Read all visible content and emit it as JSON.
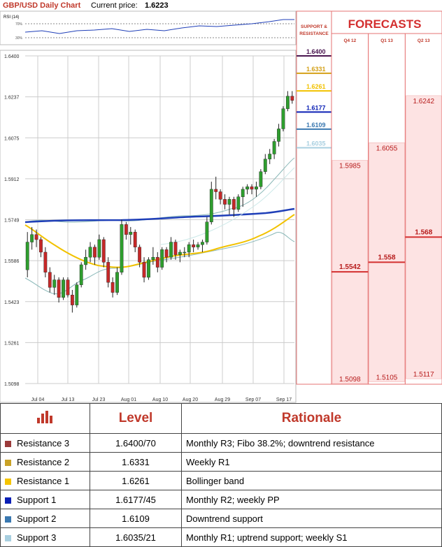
{
  "header": {
    "title": "GBP/USD Daily Chart",
    "price_label": "Current price:",
    "price_value": "1.6223"
  },
  "rsi": {
    "label": "RSI (14)",
    "levels": [
      "70%",
      "30%"
    ]
  },
  "chart_data": {
    "type": "candlestick",
    "title": "GBP/USD Daily Chart",
    "y_ticks": [
      "1.6400",
      "1.6237",
      "1.6075",
      "1.5912",
      "1.5749",
      "1.5586",
      "1.5423",
      "1.5261",
      "1.5098"
    ],
    "x_ticks": [
      "Jul 04",
      "Jul 13",
      "Jul 23",
      "Aug 01",
      "Aug 10",
      "Aug 20",
      "Aug 29",
      "Sep 07",
      "Sep 17"
    ],
    "ylim": [
      1.5098,
      1.64
    ],
    "candles": [
      [
        1.555,
        1.57,
        1.552,
        1.566
      ],
      [
        1.566,
        1.572,
        1.563,
        1.569
      ],
      [
        1.569,
        1.571,
        1.564,
        1.567
      ],
      [
        1.567,
        1.568,
        1.56,
        1.562
      ],
      [
        1.562,
        1.564,
        1.552,
        1.554
      ],
      [
        1.554,
        1.556,
        1.546,
        1.548
      ],
      [
        1.548,
        1.553,
        1.545,
        1.551
      ],
      [
        1.551,
        1.552,
        1.542,
        1.544
      ],
      [
        1.544,
        1.552,
        1.543,
        1.551
      ],
      [
        1.551,
        1.552,
        1.544,
        1.545
      ],
      [
        1.545,
        1.547,
        1.538,
        1.541
      ],
      [
        1.541,
        1.55,
        1.54,
        1.549
      ],
      [
        1.549,
        1.558,
        1.548,
        1.557
      ],
      [
        1.557,
        1.563,
        1.555,
        1.56
      ],
      [
        1.56,
        1.566,
        1.558,
        1.564
      ],
      [
        1.564,
        1.565,
        1.557,
        1.56
      ],
      [
        1.56,
        1.569,
        1.559,
        1.567
      ],
      [
        1.567,
        1.568,
        1.556,
        1.558
      ],
      [
        1.558,
        1.56,
        1.548,
        1.55
      ],
      [
        1.55,
        1.552,
        1.544,
        1.546
      ],
      [
        1.546,
        1.556,
        1.545,
        1.554
      ],
      [
        1.554,
        1.575,
        1.553,
        1.573
      ],
      [
        1.573,
        1.574,
        1.567,
        1.569
      ],
      [
        1.569,
        1.572,
        1.565,
        1.57
      ],
      [
        1.57,
        1.571,
        1.562,
        1.564
      ],
      [
        1.564,
        1.565,
        1.556,
        1.558
      ],
      [
        1.558,
        1.56,
        1.55,
        1.552
      ],
      [
        1.552,
        1.56,
        1.551,
        1.559
      ],
      [
        1.559,
        1.564,
        1.557,
        1.56
      ],
      [
        1.56,
        1.562,
        1.554,
        1.556
      ],
      [
        1.556,
        1.564,
        1.555,
        1.563
      ],
      [
        1.563,
        1.564,
        1.558,
        1.56
      ],
      [
        1.56,
        1.568,
        1.559,
        1.566
      ],
      [
        1.566,
        1.567,
        1.559,
        1.561
      ],
      [
        1.561,
        1.563,
        1.558,
        1.562
      ],
      [
        1.562,
        1.564,
        1.56,
        1.562
      ],
      [
        1.562,
        1.566,
        1.56,
        1.565
      ],
      [
        1.565,
        1.567,
        1.562,
        1.564
      ],
      [
        1.564,
        1.566,
        1.563,
        1.565
      ],
      [
        1.565,
        1.567,
        1.562,
        1.566
      ],
      [
        1.566,
        1.576,
        1.565,
        1.574
      ],
      [
        1.574,
        1.59,
        1.573,
        1.587
      ],
      [
        1.587,
        1.592,
        1.583,
        1.586
      ],
      [
        1.586,
        1.587,
        1.581,
        1.583
      ],
      [
        1.583,
        1.585,
        1.579,
        1.581
      ],
      [
        1.581,
        1.584,
        1.577,
        1.583
      ],
      [
        1.583,
        1.584,
        1.576,
        1.579
      ],
      [
        1.579,
        1.585,
        1.578,
        1.584
      ],
      [
        1.584,
        1.588,
        1.58,
        1.587
      ],
      [
        1.587,
        1.589,
        1.585,
        1.588
      ],
      [
        1.588,
        1.589,
        1.585,
        1.587
      ],
      [
        1.587,
        1.59,
        1.584,
        1.588
      ],
      [
        1.588,
        1.595,
        1.587,
        1.594
      ],
      [
        1.594,
        1.601,
        1.593,
        1.599
      ],
      [
        1.599,
        1.603,
        1.597,
        1.601
      ],
      [
        1.601,
        1.607,
        1.599,
        1.606
      ],
      [
        1.606,
        1.613,
        1.604,
        1.611
      ],
      [
        1.611,
        1.62,
        1.61,
        1.619
      ],
      [
        1.619,
        1.626,
        1.618,
        1.624
      ],
      [
        1.624,
        1.626,
        1.621,
        1.6223
      ]
    ]
  },
  "sr_levels": [
    {
      "label": "1.6400",
      "value": 1.64,
      "color": "#4a1650"
    },
    {
      "label": "1.6331",
      "value": 1.6331,
      "color": "#d4a017"
    },
    {
      "label": "1.6261",
      "value": 1.6261,
      "color": "#f2c200"
    },
    {
      "label": "1.6177",
      "value": 1.6177,
      "color": "#0a1fb5"
    },
    {
      "label": "1.6109",
      "value": 1.6109,
      "color": "#3a78b0"
    },
    {
      "label": "1.6035",
      "value": 1.6035,
      "color": "#a8cfe0"
    }
  ],
  "forecasts": {
    "title": "FORECASTS",
    "sr_header": [
      "SUPPORT &",
      "RESISTANCE"
    ],
    "columns": [
      {
        "name": "Q4 12",
        "low": "1.5098",
        "high": "1.5985",
        "mid": "1.5542",
        "low_v": 1.5098,
        "high_v": 1.5985,
        "mid_v": 1.5542
      },
      {
        "name": "Q1 13",
        "low": "1.5105",
        "high": "1.6055",
        "mid": "1.558",
        "low_v": 1.5105,
        "high_v": 1.6055,
        "mid_v": 1.558
      },
      {
        "name": "Q2 13",
        "low": "1.5117",
        "high": "1.6242",
        "mid": "1.568",
        "low_v": 1.5117,
        "high_v": 1.6242,
        "mid_v": 1.568
      }
    ]
  },
  "table": {
    "headers": [
      "Level",
      "Rationale"
    ],
    "rows": [
      {
        "name": "Resistance 3",
        "color": "#9b3b3b",
        "level": "1.6400/70",
        "rationale": "Monthly R3; Fibo 38.2%; downtrend resistance"
      },
      {
        "name": "Resistance 2",
        "color": "#c9a227",
        "level": "1.6331",
        "rationale": "Weekly R1"
      },
      {
        "name": "Resistance 1",
        "color": "#f5c400",
        "level": "1.6261",
        "rationale": "Bollinger band"
      },
      {
        "name": "Support 1",
        "color": "#0a1fb5",
        "level": "1.6177/45",
        "rationale": "Monthly R2; weekly PP"
      },
      {
        "name": "Support 2",
        "color": "#3a78b0",
        "level": "1.6109",
        "rationale": "Downtrend support"
      },
      {
        "name": "Support 3",
        "color": "#a8cfe0",
        "level": "1.6035/21",
        "rationale": "Monthly R1; uptrend support; weekly S1"
      }
    ]
  }
}
